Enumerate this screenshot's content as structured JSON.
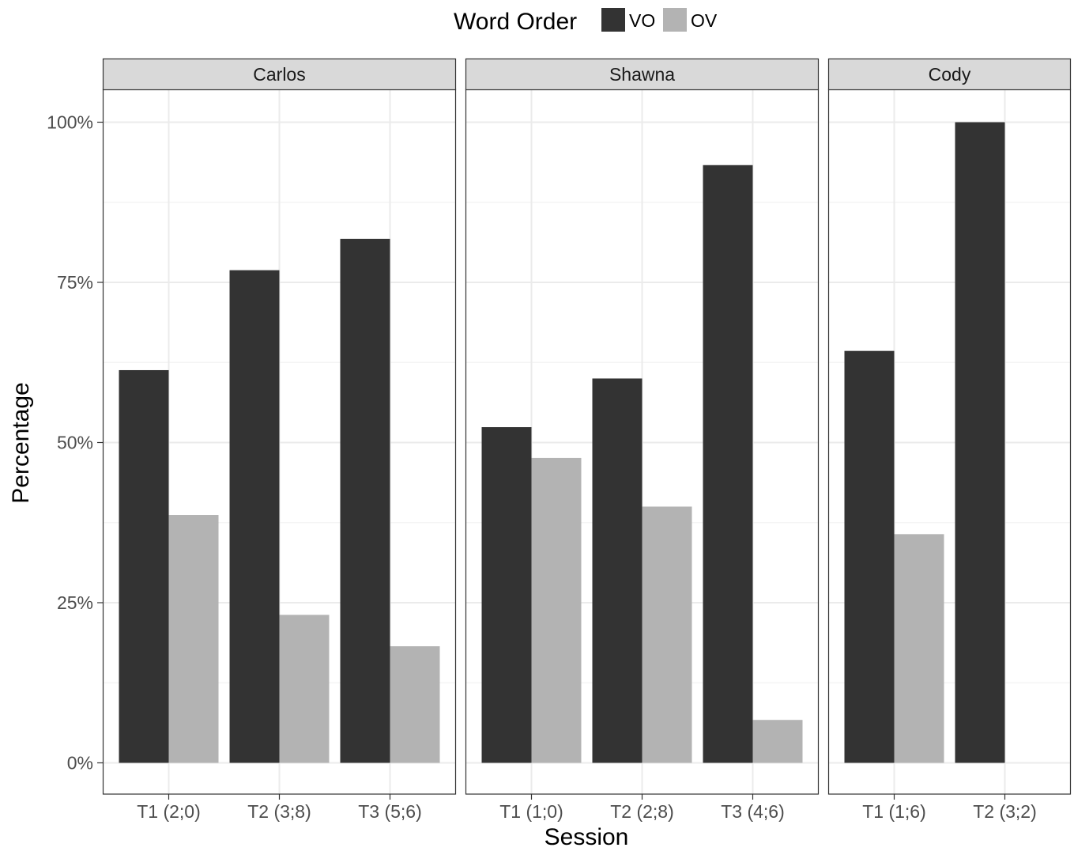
{
  "chart_data": {
    "type": "bar",
    "xlabel": "Session",
    "ylabel": "Percentage",
    "ylim": [
      0,
      105
    ],
    "yticks": [
      0,
      25,
      50,
      75,
      100
    ],
    "ytick_labels": [
      "0%",
      "25%",
      "50%",
      "75%",
      "100%"
    ],
    "grid": true,
    "legend": {
      "title": "Word Order",
      "position": "top",
      "entries": [
        {
          "name": "VO",
          "color": "#333333"
        },
        {
          "name": "OV",
          "color": "#b3b3b3"
        }
      ]
    },
    "panels": [
      {
        "title": "Carlos",
        "categories": [
          "T1 (2;0)",
          "T2 (3;8)",
          "T3 (5;6)"
        ],
        "series": [
          {
            "name": "VO",
            "values": [
              61.3,
              76.9,
              81.8
            ]
          },
          {
            "name": "OV",
            "values": [
              38.7,
              23.1,
              18.2
            ]
          }
        ]
      },
      {
        "title": "Shawna",
        "categories": [
          "T1 (1;0)",
          "T2 (2;8)",
          "T3 (4;6)"
        ],
        "series": [
          {
            "name": "VO",
            "values": [
              52.4,
              60.0,
              93.3
            ]
          },
          {
            "name": "OV",
            "values": [
              47.6,
              40.0,
              6.7
            ]
          }
        ]
      },
      {
        "title": "Cody",
        "categories": [
          "T1 (1;6)",
          "T2 (3;2)"
        ],
        "series": [
          {
            "name": "VO",
            "values": [
              64.3,
              100
            ]
          },
          {
            "name": "OV",
            "values": [
              35.7,
              0
            ]
          }
        ]
      }
    ]
  }
}
